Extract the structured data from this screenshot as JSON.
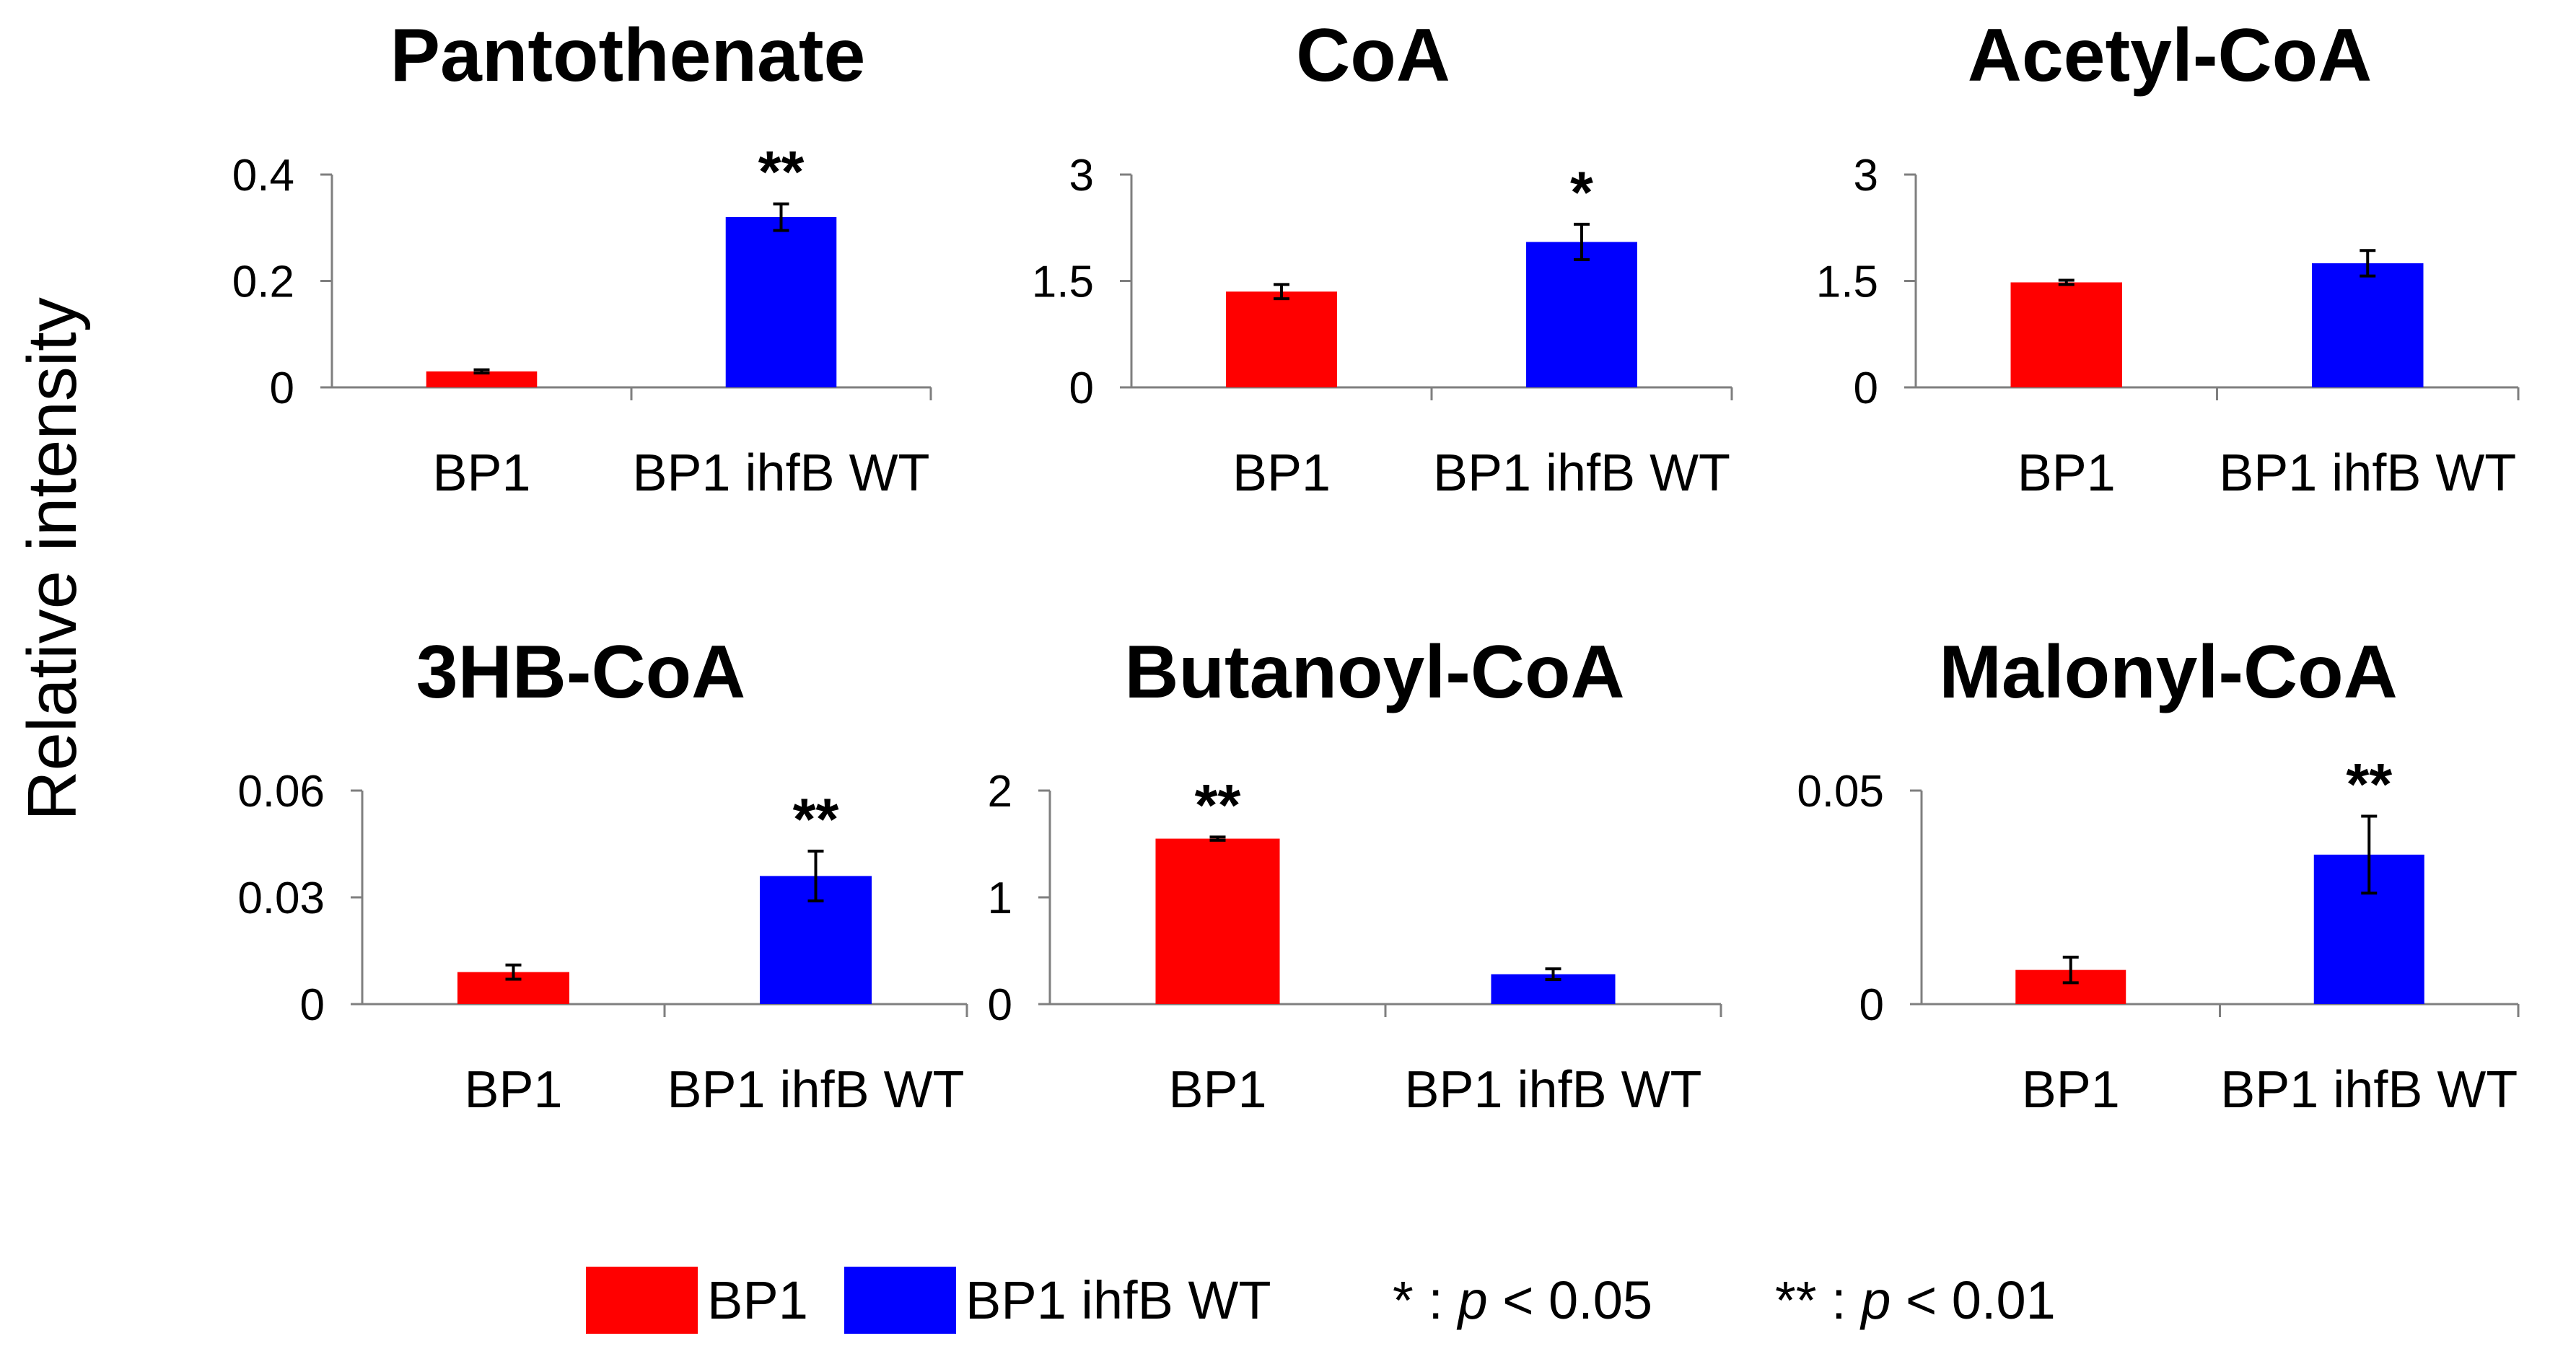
{
  "colors": {
    "bp1": "#ff0000",
    "bp1_ihfb_wt": "#0000ff",
    "axis": "#7f7f7f",
    "text": "#000000"
  },
  "figure": {
    "ylabel": "Relative intensity"
  },
  "legend": {
    "items": [
      {
        "label": "BP1",
        "color": "#ff0000"
      },
      {
        "label": "BP1 ihfB WT",
        "color": "#0000ff"
      }
    ],
    "sig1_prefix": "* : ",
    "sig1_p": "p",
    "sig1_suffix": " < 0.05",
    "sig2_prefix": "** : ",
    "sig2_p": "p",
    "sig2_suffix": " < 0.01"
  },
  "chart_data": [
    {
      "type": "bar",
      "title": "Pantothenate",
      "categories": [
        "BP1",
        "BP1 ihfB WT"
      ],
      "values": [
        0.03,
        0.32
      ],
      "errors": [
        0.003,
        0.025
      ],
      "ylim": [
        0,
        0.4
      ],
      "yticks": [
        0,
        0.2,
        0.4
      ],
      "ytick_labels": [
        "0",
        "0.2",
        "0.4"
      ],
      "significance": [
        "",
        "**"
      ]
    },
    {
      "type": "bar",
      "title": "CoA",
      "categories": [
        "BP1",
        "BP1 ihfB WT"
      ],
      "values": [
        1.35,
        2.05
      ],
      "errors": [
        0.1,
        0.25
      ],
      "ylim": [
        0,
        3
      ],
      "yticks": [
        0,
        1.5,
        3
      ],
      "ytick_labels": [
        "0",
        "1.5",
        "3"
      ],
      "significance": [
        "",
        "*"
      ]
    },
    {
      "type": "bar",
      "title": "Acetyl-CoA",
      "categories": [
        "BP1",
        "BP1 ihfB WT"
      ],
      "values": [
        1.48,
        1.75
      ],
      "errors": [
        0.03,
        0.18
      ],
      "ylim": [
        0,
        3
      ],
      "yticks": [
        0,
        1.5,
        3
      ],
      "ytick_labels": [
        "0",
        "1.5",
        "3"
      ],
      "significance": [
        "",
        ""
      ]
    },
    {
      "type": "bar",
      "title": "3HB-CoA",
      "categories": [
        "BP1",
        "BP1 ihfB WT"
      ],
      "values": [
        0.009,
        0.036
      ],
      "errors": [
        0.002,
        0.007
      ],
      "ylim": [
        0,
        0.06
      ],
      "yticks": [
        0,
        0.03,
        0.06
      ],
      "ytick_labels": [
        "0",
        "0.03",
        "0.06"
      ],
      "significance": [
        "",
        "**"
      ]
    },
    {
      "type": "bar",
      "title": "Butanoyl-CoA",
      "categories": [
        "BP1",
        "BP1 ihfB WT"
      ],
      "values": [
        1.55,
        0.28
      ],
      "errors": [
        0.015,
        0.05
      ],
      "ylim": [
        0,
        2
      ],
      "yticks": [
        0,
        1,
        2
      ],
      "ytick_labels": [
        "0",
        "1",
        "2"
      ],
      "significance": [
        "**",
        ""
      ]
    },
    {
      "type": "bar",
      "title": "Malonyl-CoA",
      "categories": [
        "BP1",
        "BP1 ihfB WT"
      ],
      "values": [
        0.008,
        0.035
      ],
      "errors": [
        0.003,
        0.009
      ],
      "ylim": [
        0,
        0.05
      ],
      "yticks": [
        0,
        0.05
      ],
      "ytick_labels": [
        "0",
        "0.05"
      ],
      "significance": [
        "",
        "**"
      ]
    }
  ]
}
